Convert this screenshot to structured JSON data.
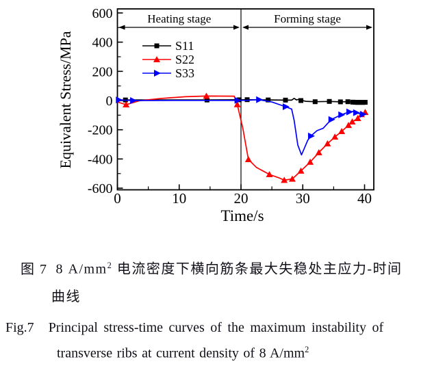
{
  "figure_captions": {
    "zh": {
      "prefix": "图 7",
      "before_sup": "8 A/mm",
      "sup": "2",
      "after_sup": " 电流密度下横向筋条最大失稳处主应力-时间",
      "line2": "曲线"
    },
    "en": {
      "prefix": "Fig.7",
      "line1": "Principal stress-time curves of the maximum instability of",
      "line2_before_sup": "transverse ribs at current density of 8 A/mm",
      "sup": "2"
    }
  },
  "chart_data": {
    "type": "line",
    "title": "",
    "xlabel": "Time/s",
    "ylabel": "Equivalent Stress/MPa",
    "xlim": [
      0,
      41.5
    ],
    "ylim": [
      -600,
      600
    ],
    "x_ticks": [
      0,
      10,
      20,
      30,
      40
    ],
    "x_minor_ticks": [
      5,
      15,
      25,
      35
    ],
    "y_ticks": [
      600,
      400,
      200,
      0,
      -200,
      -400,
      -600
    ],
    "y_minor_ticks": [
      500,
      300,
      100,
      -100,
      -300,
      -500
    ],
    "grid": false,
    "legend_position": "upper-left-inside",
    "axis_color": "#000000",
    "stage_divider_x": 20,
    "stages": [
      {
        "label": "Heating stage",
        "x_start": 0,
        "x_end": 20
      },
      {
        "label": "Forming stage",
        "x_start": 20,
        "x_end": 41.5
      }
    ],
    "series": [
      {
        "name": "S11",
        "color": "#000000",
        "marker": "square",
        "line": [
          [
            0.2,
            4
          ],
          [
            1.3,
            4
          ],
          [
            14.5,
            4
          ],
          [
            19.7,
            5
          ],
          [
            21.0,
            6
          ],
          [
            24.4,
            4
          ],
          [
            27.2,
            3
          ],
          [
            28.2,
            3
          ],
          [
            28.6,
            15
          ],
          [
            29.0,
            4
          ],
          [
            29.4,
            9
          ],
          [
            29.9,
            0
          ],
          [
            30.5,
            -5
          ],
          [
            32.0,
            -8
          ],
          [
            34.3,
            -6
          ],
          [
            36.1,
            -9
          ],
          [
            37.3,
            -8
          ],
          [
            38.1,
            -11
          ],
          [
            40.3,
            -12
          ]
        ],
        "markers": [
          [
            1.3,
            4
          ],
          [
            14.5,
            4
          ],
          [
            19.7,
            5
          ],
          [
            21.0,
            6
          ],
          [
            24.4,
            4
          ],
          [
            27.2,
            3
          ],
          [
            29.7,
            0
          ],
          [
            32.0,
            -8
          ],
          [
            34.3,
            -6
          ],
          [
            36.1,
            -9
          ],
          [
            37.3,
            -8
          ],
          [
            38.1,
            -11
          ],
          [
            38.5,
            -12
          ],
          [
            38.9,
            -13
          ],
          [
            39.3,
            -12
          ],
          [
            39.7,
            -13
          ],
          [
            40.1,
            -12
          ]
        ]
      },
      {
        "name": "S22",
        "color": "#ff0000",
        "marker": "triangle-up",
        "line": [
          [
            0,
            -10
          ],
          [
            1.4,
            -28
          ],
          [
            3.5,
            -2
          ],
          [
            7,
            14
          ],
          [
            11,
            26
          ],
          [
            14.4,
            31
          ],
          [
            18.9,
            30
          ],
          [
            19.4,
            -27
          ],
          [
            20.3,
            -190
          ],
          [
            21.2,
            -403
          ],
          [
            22.5,
            -458
          ],
          [
            24.6,
            -506
          ],
          [
            26.3,
            -532
          ],
          [
            27.0,
            -545
          ],
          [
            28.3,
            -537
          ],
          [
            29.7,
            -482
          ],
          [
            31.2,
            -421
          ],
          [
            32.6,
            -356
          ],
          [
            34.0,
            -295
          ],
          [
            35.2,
            -249
          ],
          [
            36.3,
            -211
          ],
          [
            37.4,
            -169
          ],
          [
            38.0,
            -145
          ],
          [
            38.9,
            -122
          ],
          [
            39.5,
            -95
          ],
          [
            40.1,
            -80
          ]
        ],
        "markers": [
          [
            1.4,
            -28
          ],
          [
            14.4,
            31
          ],
          [
            19.4,
            -27
          ],
          [
            21.2,
            -403
          ],
          [
            24.6,
            -506
          ],
          [
            27.0,
            -545
          ],
          [
            28.3,
            -537
          ],
          [
            29.7,
            -482
          ],
          [
            31.2,
            -421
          ],
          [
            32.6,
            -356
          ],
          [
            34.0,
            -295
          ],
          [
            35.2,
            -249
          ],
          [
            36.3,
            -211
          ],
          [
            37.4,
            -169
          ],
          [
            38.0,
            -145
          ],
          [
            38.9,
            -122
          ],
          [
            39.5,
            -95
          ],
          [
            40.1,
            -80
          ]
        ]
      },
      {
        "name": "S33",
        "color": "#0000ff",
        "marker": "triangle-right",
        "line": [
          [
            0.2,
            4
          ],
          [
            2.5,
            0
          ],
          [
            10,
            1
          ],
          [
            19.4,
            1
          ],
          [
            21,
            2
          ],
          [
            22.9,
            6
          ],
          [
            25,
            -10
          ],
          [
            27.2,
            -42
          ],
          [
            28.2,
            -58
          ],
          [
            28.6,
            -135
          ],
          [
            29.2,
            -305
          ],
          [
            29.8,
            -372
          ],
          [
            30.3,
            -322
          ],
          [
            30.8,
            -272
          ],
          [
            31.3,
            -243
          ],
          [
            32.3,
            -206
          ],
          [
            33.3,
            -190
          ],
          [
            34.6,
            -130
          ],
          [
            36.2,
            -98
          ],
          [
            37.5,
            -78
          ],
          [
            38.2,
            -74
          ],
          [
            38.6,
            -83
          ],
          [
            39.2,
            -90
          ],
          [
            39.7,
            -94
          ],
          [
            40.1,
            -90
          ]
        ],
        "markers": [
          [
            0.2,
            4
          ],
          [
            2.5,
            0
          ],
          [
            19.4,
            1
          ],
          [
            22.9,
            6
          ],
          [
            27.2,
            -42
          ],
          [
            31.3,
            -243
          ],
          [
            34.6,
            -130
          ],
          [
            36.2,
            -98
          ],
          [
            37.5,
            -78
          ],
          [
            38.6,
            -83
          ],
          [
            39.7,
            -94
          ]
        ]
      }
    ]
  }
}
